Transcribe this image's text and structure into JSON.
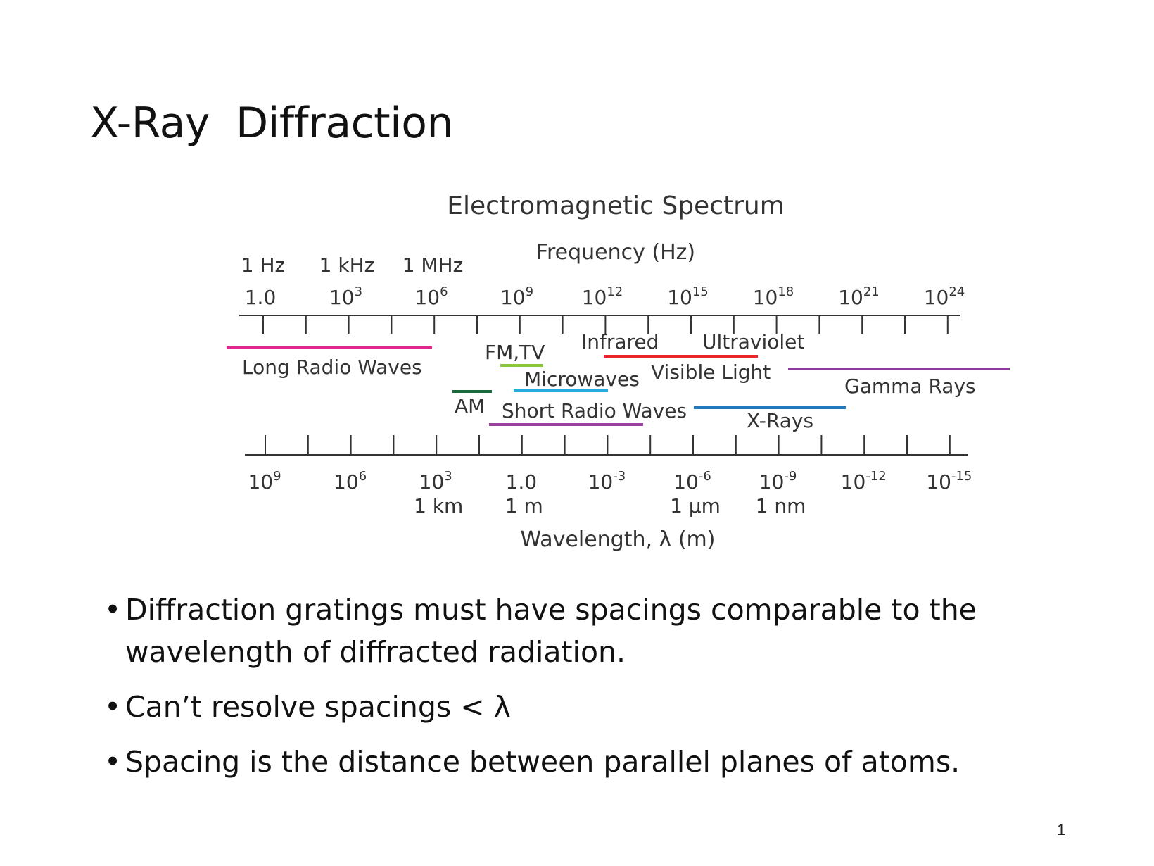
{
  "slide": {
    "title": "X-Ray  Diffraction",
    "page_number": "1",
    "bullets": [
      "Diffraction gratings must have spacings comparable to the wavelength of diffracted radiation.",
      "Can’t resolve spacings < λ",
      "Spacing is the distance between parallel planes of atoms."
    ]
  },
  "diagram": {
    "title": "Electromagnetic Spectrum",
    "frequency_axis_label": "Frequency (Hz)",
    "wavelength_axis_label": "Wavelength, λ (m)",
    "frequency_named_units": [
      "1 Hz",
      "1 kHz",
      "1 MHz"
    ],
    "frequency_ticks": [
      {
        "base": "1.0",
        "exp": ""
      },
      {
        "base": "10",
        "exp": "3"
      },
      {
        "base": "10",
        "exp": "6"
      },
      {
        "base": "10",
        "exp": "9"
      },
      {
        "base": "10",
        "exp": "12"
      },
      {
        "base": "10",
        "exp": "15"
      },
      {
        "base": "10",
        "exp": "18"
      },
      {
        "base": "10",
        "exp": "21"
      },
      {
        "base": "10",
        "exp": "24"
      }
    ],
    "wavelength_ticks": [
      {
        "base": "10",
        "exp": "9",
        "unit": ""
      },
      {
        "base": "10",
        "exp": "6",
        "unit": ""
      },
      {
        "base": "10",
        "exp": "3",
        "unit": "1 km"
      },
      {
        "base": "1.0",
        "exp": "",
        "unit": "1 m"
      },
      {
        "base": "10",
        "exp": "-3",
        "unit": ""
      },
      {
        "base": "10",
        "exp": "-6",
        "unit": "1 µm"
      },
      {
        "base": "10",
        "exp": "-9",
        "unit": "1 nm"
      },
      {
        "base": "10",
        "exp": "-12",
        "unit": ""
      },
      {
        "base": "10",
        "exp": "-15",
        "unit": ""
      }
    ],
    "bands": [
      {
        "name": "Long Radio Waves",
        "color": "#e0268f"
      },
      {
        "name": "AM",
        "color": "#1a6b3c"
      },
      {
        "name": "FM,TV",
        "color": "#8cc63f"
      },
      {
        "name": "Microwaves",
        "color": "#29a8e0"
      },
      {
        "name": "Short Radio Waves",
        "color": "#9b3fa0"
      },
      {
        "name": "Infrared",
        "color": "#e8262d"
      },
      {
        "name": "Visible Light",
        "color": ""
      },
      {
        "name": "Ultraviolet",
        "color": ""
      },
      {
        "name": "X-Rays",
        "color": "#1f7ac2"
      },
      {
        "name": "Gamma Rays",
        "color": "#8e3a9f"
      }
    ]
  }
}
